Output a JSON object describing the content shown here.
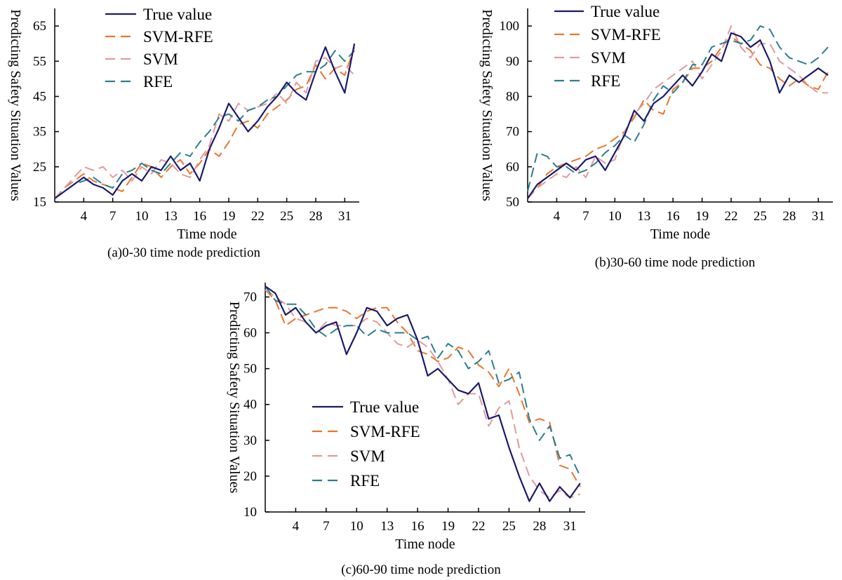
{
  "chart_data": [
    {
      "type": "line",
      "caption": "(a)0-30 time node prediction",
      "xlabel": "Time node",
      "ylabel": "Predicting Safety Situation Values",
      "xlim": [
        1,
        32.5
      ],
      "ylim": [
        15,
        70
      ],
      "xticks": [
        4,
        7,
        10,
        13,
        16,
        19,
        22,
        25,
        28,
        31
      ],
      "yticks": [
        15,
        25,
        35,
        45,
        55,
        65
      ],
      "legend_position": "top-center",
      "series": [
        {
          "name": "True value",
          "color": "#1a1a6e",
          "dash": "solid",
          "x": [
            1,
            2,
            3,
            4,
            5,
            6,
            7,
            8,
            9,
            10,
            11,
            12,
            13,
            14,
            15,
            16,
            17,
            18,
            19,
            20,
            21,
            22,
            23,
            24,
            25,
            26,
            27,
            28,
            29,
            30,
            31,
            32
          ],
          "y": [
            16,
            18,
            20,
            22,
            20,
            19,
            17,
            21,
            23,
            21,
            25,
            24,
            28,
            24,
            26,
            21,
            30,
            36,
            43,
            39,
            35,
            38,
            42,
            45,
            49,
            46,
            44,
            52,
            59,
            52,
            46,
            60
          ]
        },
        {
          "name": "SVM-RFE",
          "color": "#e8772b",
          "dash": "long",
          "x": [
            1,
            2,
            3,
            4,
            5,
            6,
            7,
            8,
            9,
            10,
            11,
            12,
            13,
            14,
            15,
            16,
            17,
            18,
            19,
            20,
            21,
            22,
            23,
            24,
            25,
            26,
            27,
            28,
            29,
            30,
            31,
            32
          ],
          "y": [
            16,
            19,
            21,
            23,
            21,
            20,
            19,
            18,
            22,
            26,
            25,
            22,
            25,
            27,
            23,
            26,
            30,
            28,
            32,
            37,
            38,
            36,
            40,
            42,
            44,
            47,
            48,
            54,
            50,
            53,
            51,
            59
          ]
        },
        {
          "name": "SVM",
          "color": "#e39a9a",
          "dash": "long",
          "x": [
            1,
            2,
            3,
            4,
            5,
            6,
            7,
            8,
            9,
            10,
            11,
            12,
            13,
            14,
            15,
            16,
            17,
            18,
            19,
            20,
            21,
            22,
            23,
            24,
            25,
            26,
            27,
            28,
            29,
            30,
            31,
            32
          ],
          "y": [
            16,
            19,
            22,
            25,
            24,
            25,
            22,
            24,
            21,
            25,
            23,
            27,
            26,
            23,
            22,
            27,
            31,
            40,
            38,
            43,
            41,
            42,
            43,
            46,
            43,
            49,
            46,
            55,
            56,
            53,
            54,
            51
          ]
        },
        {
          "name": "RFE",
          "color": "#2a7f8f",
          "dash": "long",
          "x": [
            1,
            2,
            3,
            4,
            5,
            6,
            7,
            8,
            9,
            10,
            11,
            12,
            13,
            14,
            15,
            16,
            17,
            18,
            19,
            20,
            21,
            22,
            23,
            24,
            25,
            26,
            27,
            28,
            29,
            30,
            31,
            32
          ],
          "y": [
            16,
            18,
            20,
            21,
            22,
            20,
            19,
            23,
            24,
            26,
            24,
            23,
            26,
            29,
            28,
            32,
            35,
            39,
            40,
            38,
            41,
            42,
            44,
            45,
            48,
            51,
            52,
            52,
            54,
            58,
            55,
            58
          ]
        }
      ]
    },
    {
      "type": "line",
      "caption": "(b)30-60 time node prediction",
      "xlabel": "Time node",
      "ylabel": "Predicting Safety Situation Values",
      "xlim": [
        1,
        32.5
      ],
      "ylim": [
        50,
        105
      ],
      "xticks": [
        4,
        7,
        10,
        13,
        16,
        19,
        22,
        25,
        28,
        31
      ],
      "yticks": [
        50,
        60,
        70,
        80,
        90,
        100
      ],
      "legend_position": "top-left",
      "series": [
        {
          "name": "True value",
          "color": "#1a1a6e",
          "dash": "solid",
          "x": [
            1,
            2,
            3,
            4,
            5,
            6,
            7,
            8,
            9,
            10,
            11,
            12,
            13,
            14,
            15,
            16,
            17,
            18,
            19,
            20,
            21,
            22,
            23,
            24,
            25,
            26,
            27,
            28,
            29,
            30,
            31,
            32
          ],
          "y": [
            51,
            55,
            57,
            59,
            61,
            59,
            62,
            63,
            59,
            64,
            69,
            76,
            73,
            78,
            80,
            83,
            86,
            83,
            87,
            92,
            90,
            98,
            97,
            94,
            96,
            90,
            81,
            86,
            84,
            86,
            88,
            86
          ]
        },
        {
          "name": "SVM-RFE",
          "color": "#e8772b",
          "dash": "long",
          "x": [
            1,
            2,
            3,
            4,
            5,
            6,
            7,
            8,
            9,
            10,
            11,
            12,
            13,
            14,
            15,
            16,
            17,
            18,
            19,
            20,
            21,
            22,
            23,
            24,
            25,
            26,
            27,
            28,
            29,
            30,
            31,
            32
          ],
          "y": [
            51,
            54,
            58,
            60,
            61,
            62,
            63,
            65,
            66,
            68,
            70,
            74,
            79,
            76,
            75,
            82,
            84,
            88,
            88,
            90,
            94,
            97,
            95,
            93,
            89,
            88,
            85,
            83,
            85,
            83,
            82,
            87
          ]
        },
        {
          "name": "SVM",
          "color": "#e39a9a",
          "dash": "long",
          "x": [
            1,
            2,
            3,
            4,
            5,
            6,
            7,
            8,
            9,
            10,
            11,
            12,
            13,
            14,
            15,
            16,
            17,
            18,
            19,
            20,
            21,
            22,
            23,
            24,
            25,
            26,
            27,
            28,
            29,
            30,
            31,
            32
          ],
          "y": [
            51,
            54,
            56,
            58,
            57,
            60,
            57,
            63,
            61,
            62,
            70,
            75,
            78,
            82,
            84,
            86,
            88,
            90,
            85,
            89,
            93,
            100,
            94,
            91,
            95,
            95,
            90,
            88,
            86,
            83,
            81,
            81
          ]
        },
        {
          "name": "RFE",
          "color": "#2a7f8f",
          "dash": "long",
          "x": [
            1,
            2,
            3,
            4,
            5,
            6,
            7,
            8,
            9,
            10,
            11,
            12,
            13,
            14,
            15,
            16,
            17,
            18,
            19,
            20,
            21,
            22,
            23,
            24,
            25,
            26,
            27,
            28,
            29,
            30,
            31,
            32
          ],
          "y": [
            53,
            64,
            63,
            60,
            60,
            58,
            59,
            61,
            64,
            66,
            69,
            67,
            72,
            79,
            83,
            81,
            84,
            89,
            89,
            94,
            95,
            96,
            95,
            96,
            100,
            99,
            94,
            91,
            90,
            89,
            91,
            94
          ]
        }
      ]
    },
    {
      "type": "line",
      "caption": "(c)60-90 time node prediction",
      "xlabel": "Time node",
      "ylabel": "Predicting Safety Situation Values",
      "xlim": [
        1,
        32.5
      ],
      "ylim": [
        10,
        74
      ],
      "xticks": [
        4,
        7,
        10,
        13,
        16,
        19,
        22,
        25,
        28,
        31
      ],
      "yticks": [
        10,
        20,
        30,
        40,
        50,
        60,
        70
      ],
      "legend_position": "bottom-left",
      "series": [
        {
          "name": "True value",
          "color": "#1a1a6e",
          "dash": "solid",
          "x": [
            1,
            2,
            3,
            4,
            5,
            6,
            7,
            8,
            9,
            10,
            11,
            12,
            13,
            14,
            15,
            16,
            17,
            18,
            19,
            20,
            21,
            22,
            23,
            24,
            25,
            26,
            27,
            28,
            29,
            30,
            31,
            32
          ],
          "y": [
            73,
            71,
            65,
            67,
            63,
            60,
            62,
            63,
            54,
            60,
            67,
            66,
            62,
            64,
            65,
            58,
            48,
            50,
            47,
            44,
            43,
            46,
            36,
            37,
            28,
            20,
            13,
            18,
            13,
            17,
            14,
            18
          ]
        },
        {
          "name": "SVM-RFE",
          "color": "#e8772b",
          "dash": "long",
          "x": [
            1,
            2,
            3,
            4,
            5,
            6,
            7,
            8,
            9,
            10,
            11,
            12,
            13,
            14,
            15,
            16,
            17,
            18,
            19,
            20,
            21,
            22,
            23,
            24,
            25,
            26,
            27,
            28,
            29,
            30,
            31,
            32
          ],
          "y": [
            72,
            69,
            62,
            64,
            65,
            66,
            67,
            67,
            66,
            64,
            66,
            67,
            67,
            63,
            60,
            55,
            54,
            52,
            53,
            56,
            55,
            51,
            49,
            45,
            50,
            43,
            35,
            36,
            35,
            23,
            22,
            17
          ]
        },
        {
          "name": "SVM",
          "color": "#e39a9a",
          "dash": "long",
          "x": [
            1,
            2,
            3,
            4,
            5,
            6,
            7,
            8,
            9,
            10,
            11,
            12,
            13,
            14,
            15,
            16,
            17,
            18,
            19,
            20,
            21,
            22,
            23,
            24,
            25,
            26,
            27,
            28,
            29,
            30,
            31,
            32
          ],
          "y": [
            72,
            70,
            68,
            64,
            63,
            60,
            63,
            62,
            62,
            62,
            64,
            63,
            60,
            57,
            56,
            58,
            56,
            52,
            47,
            40,
            43,
            43,
            34,
            39,
            41,
            28,
            20,
            16,
            14,
            16,
            14,
            15
          ]
        },
        {
          "name": "RFE",
          "color": "#2a7f8f",
          "dash": "long",
          "x": [
            1,
            2,
            3,
            4,
            5,
            6,
            7,
            8,
            9,
            10,
            11,
            12,
            13,
            14,
            15,
            16,
            17,
            18,
            19,
            20,
            21,
            22,
            23,
            24,
            25,
            26,
            27,
            28,
            29,
            30,
            31,
            32
          ],
          "y": [
            73,
            69,
            68,
            68,
            65,
            61,
            59,
            61,
            62,
            62,
            59,
            61,
            60,
            60,
            60,
            58,
            59,
            53,
            57,
            55,
            50,
            52,
            55,
            46,
            47,
            49,
            36,
            30,
            34,
            25,
            26,
            20
          ]
        }
      ]
    }
  ]
}
